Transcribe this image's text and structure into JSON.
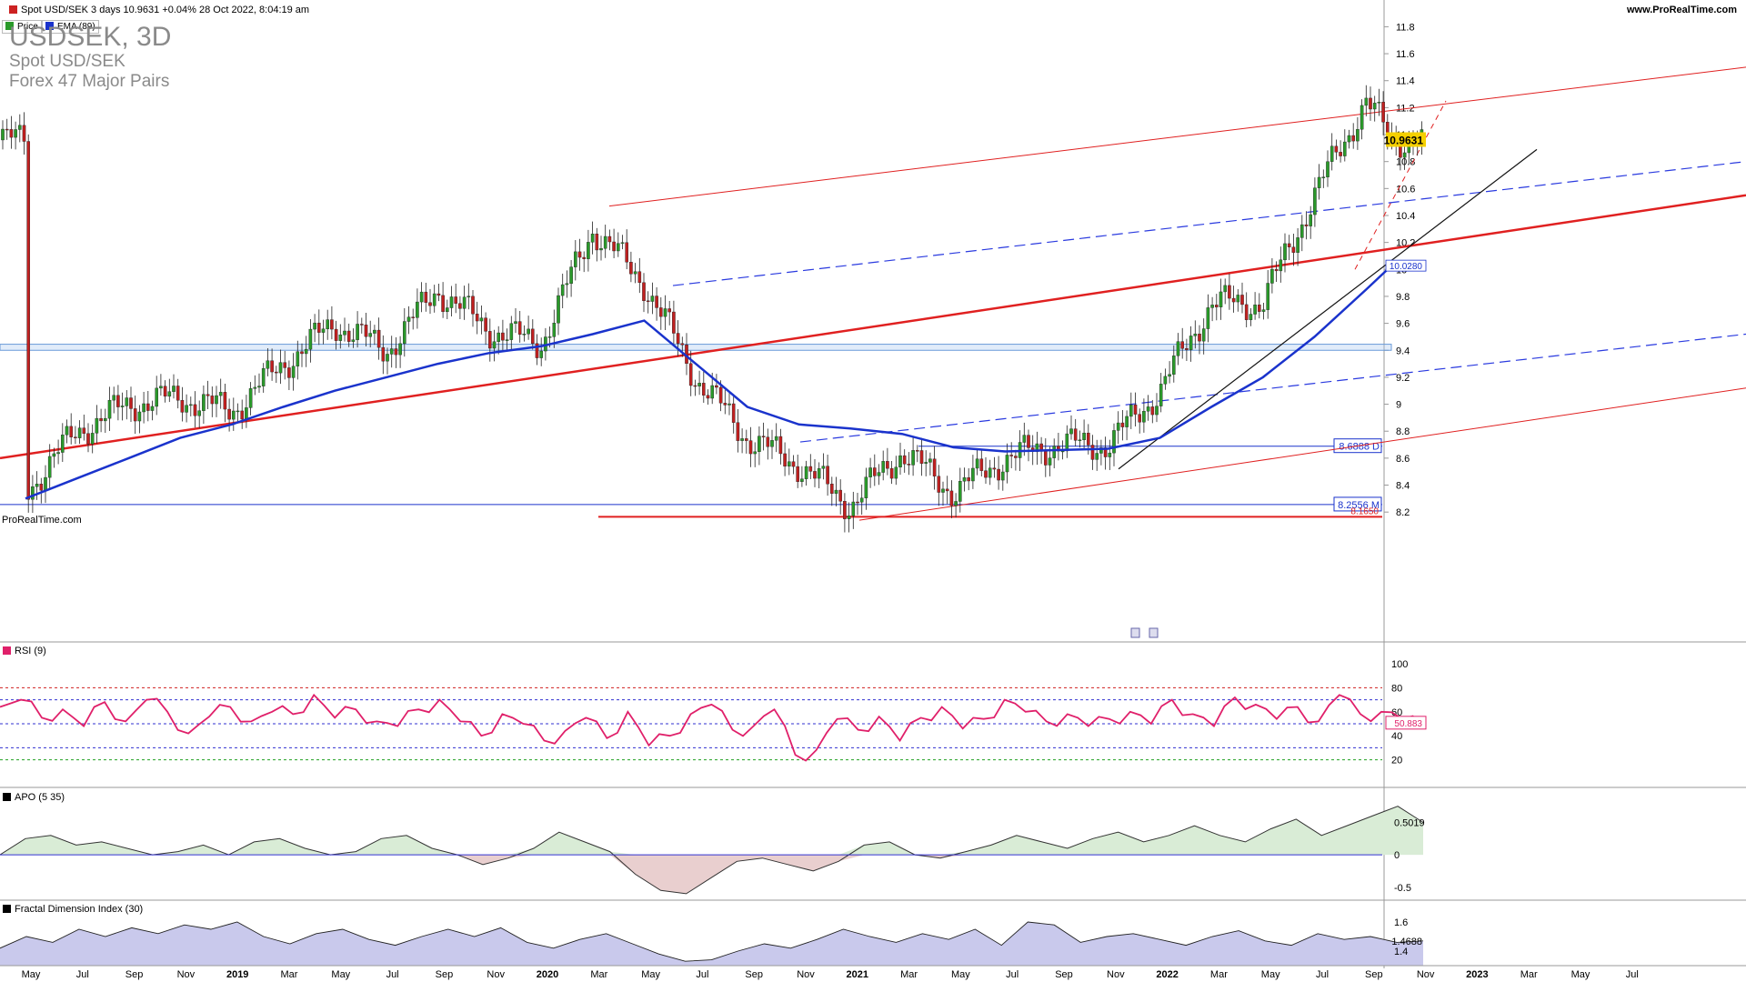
{
  "header": {
    "instrument_line": "Spot USD/SEK 3 days 10.9631 +0.04% 28 Oct 2022, 8:04:19 am",
    "site": "www.ProRealTime.com"
  },
  "legend": {
    "price": "Price",
    "ema": "EMA (89)"
  },
  "title": {
    "symbol": "USDSEK, 3D",
    "name": "Spot USD/SEK",
    "group": "Forex 47 Major Pairs"
  },
  "colors": {
    "ema": "#1a33cc",
    "channel_red": "#e02020",
    "rsi": "#e0206a",
    "apo_fill": "#d9ecd6",
    "apo_neg_fill": "#e9cfcf",
    "fdi_fill": "#c9c9ec",
    "up_candle": "#2a9a2a",
    "down_candle": "#c02020"
  },
  "chart_data": [
    {
      "type": "candlestick",
      "title": "USDSEK, 3D",
      "y_ticks": [
        "11.8",
        "11.6",
        "11.4",
        "11.2",
        "11",
        "10.8",
        "10.6",
        "10.4",
        "10.2",
        "10",
        "9.8",
        "9.6",
        "9.4",
        "9.2",
        "9",
        "8.8",
        "8.6",
        "8.4",
        "8.2"
      ],
      "ylim": [
        8.1,
        11.85
      ],
      "last_price": "10.9631",
      "ema_value": "10.0280",
      "series": [
        {
          "name": "Price",
          "x": [
            "2018-05",
            "2018-07",
            "2018-09",
            "2018-11",
            "2019-01",
            "2019-03",
            "2019-05",
            "2019-07",
            "2019-09",
            "2019-11",
            "2020-01",
            "2020-03",
            "2020-05",
            "2020-07",
            "2020-09",
            "2020-11",
            "2021-01",
            "2021-03",
            "2021-05",
            "2021-07",
            "2021-09",
            "2021-11",
            "2022-01",
            "2022-03",
            "2022-05",
            "2022-07",
            "2022-09",
            "2022-10"
          ],
          "values": [
            8.35,
            8.8,
            9.0,
            9.05,
            8.95,
            9.3,
            9.6,
            9.4,
            9.85,
            9.55,
            9.45,
            10.3,
            9.9,
            9.2,
            8.75,
            8.55,
            8.25,
            8.65,
            8.35,
            8.6,
            8.7,
            8.7,
            9.1,
            9.75,
            9.75,
            10.55,
            11.25,
            10.96
          ]
        },
        {
          "name": "EMA (89)",
          "x": [
            "2018-05",
            "2018-07",
            "2018-09",
            "2018-11",
            "2019-01",
            "2019-03",
            "2019-05",
            "2019-07",
            "2019-09",
            "2019-11",
            "2020-01",
            "2020-03",
            "2020-05",
            "2020-07",
            "2020-09",
            "2020-11",
            "2021-01",
            "2021-03",
            "2021-05",
            "2021-07",
            "2021-09",
            "2021-11",
            "2022-01",
            "2022-03",
            "2022-05",
            "2022-07",
            "2022-09",
            "2022-10"
          ],
          "values": [
            8.3,
            8.45,
            8.6,
            8.75,
            8.85,
            8.98,
            9.1,
            9.2,
            9.3,
            9.38,
            9.43,
            9.52,
            9.62,
            9.3,
            8.98,
            8.85,
            8.82,
            8.78,
            8.68,
            8.65,
            8.66,
            8.67,
            8.75,
            8.98,
            9.2,
            9.5,
            9.85,
            10.03
          ]
        }
      ],
      "levels": [
        {
          "label": "8.6888 D",
          "value": 8.6888
        },
        {
          "label": "8.2556 M",
          "value": 8.2556
        },
        {
          "label": "8.1650",
          "value": 8.165
        }
      ],
      "watermark": "ProRealTime.com"
    },
    {
      "type": "line",
      "title": "RSI (9)",
      "y_ticks": [
        "100",
        "80",
        "60",
        "40",
        "20"
      ],
      "ylim": [
        0,
        100
      ],
      "last_value": "50.883",
      "levels": [
        80,
        70,
        50,
        30,
        20
      ],
      "series": [
        {
          "name": "RSI (9)",
          "values": [
            64,
            70,
            55,
            62,
            48,
            68,
            52,
            70,
            60,
            42,
            56,
            64,
            52,
            60,
            58,
            74,
            55,
            62,
            52,
            48,
            62,
            70,
            52,
            40,
            58,
            50,
            36,
            44,
            55,
            38,
            60,
            32,
            40,
            58,
            66,
            45,
            48,
            62,
            24,
            28,
            54,
            45,
            56,
            36,
            55,
            64,
            46,
            54,
            70,
            60,
            52,
            58,
            48,
            54,
            60,
            50,
            70,
            58,
            48,
            72,
            66,
            54,
            64,
            52,
            74,
            58,
            60,
            54,
            50
          ]
        }
      ]
    },
    {
      "type": "area",
      "title": "APO (5 35)",
      "y_ticks": [
        "0.5019",
        "0",
        "-0.5"
      ],
      "ylim": [
        -0.7,
        0.9
      ],
      "last_value": "0.5019",
      "series": [
        {
          "name": "APO (5 35)",
          "values": [
            0.0,
            0.25,
            0.3,
            0.15,
            0.2,
            0.1,
            0.0,
            0.05,
            0.15,
            0.0,
            0.2,
            0.25,
            0.1,
            0.0,
            0.05,
            0.25,
            0.3,
            0.1,
            0.0,
            -0.15,
            -0.05,
            0.1,
            0.35,
            0.2,
            0.05,
            -0.3,
            -0.55,
            -0.6,
            -0.35,
            -0.1,
            -0.05,
            -0.15,
            -0.25,
            -0.1,
            0.15,
            0.2,
            0.0,
            -0.05,
            0.05,
            0.15,
            0.3,
            0.2,
            0.1,
            0.25,
            0.35,
            0.2,
            0.3,
            0.45,
            0.3,
            0.2,
            0.4,
            0.55,
            0.3,
            0.45,
            0.6,
            0.75,
            0.5
          ]
        }
      ]
    },
    {
      "type": "area",
      "title": "Fractal Dimension Index (30)",
      "y_ticks": [
        "1.6",
        "1.4688",
        "1.4"
      ],
      "ylim": [
        1.3,
        1.7
      ],
      "last_value": "1.4688",
      "series": [
        {
          "name": "Fractal Dimension Index (30)",
          "values": [
            1.42,
            1.5,
            1.46,
            1.55,
            1.5,
            1.56,
            1.52,
            1.58,
            1.55,
            1.6,
            1.5,
            1.45,
            1.52,
            1.55,
            1.48,
            1.44,
            1.5,
            1.55,
            1.5,
            1.56,
            1.46,
            1.42,
            1.48,
            1.52,
            1.45,
            1.38,
            1.33,
            1.34,
            1.4,
            1.45,
            1.42,
            1.48,
            1.55,
            1.5,
            1.46,
            1.52,
            1.48,
            1.55,
            1.44,
            1.6,
            1.58,
            1.46,
            1.5,
            1.52,
            1.48,
            1.44,
            1.5,
            1.54,
            1.47,
            1.44,
            1.52,
            1.48,
            1.5,
            1.46,
            1.47
          ]
        }
      ]
    }
  ],
  "x_axis": [
    "May",
    "Jul",
    "Sep",
    "Nov",
    "2019",
    "Mar",
    "May",
    "Jul",
    "Sep",
    "Nov",
    "2020",
    "Mar",
    "May",
    "Jul",
    "Sep",
    "Nov",
    "2021",
    "Mar",
    "May",
    "Jul",
    "Sep",
    "Nov",
    "2022",
    "Mar",
    "May",
    "Jul",
    "Sep",
    "Nov",
    "2023",
    "Mar",
    "May",
    "Jul"
  ]
}
